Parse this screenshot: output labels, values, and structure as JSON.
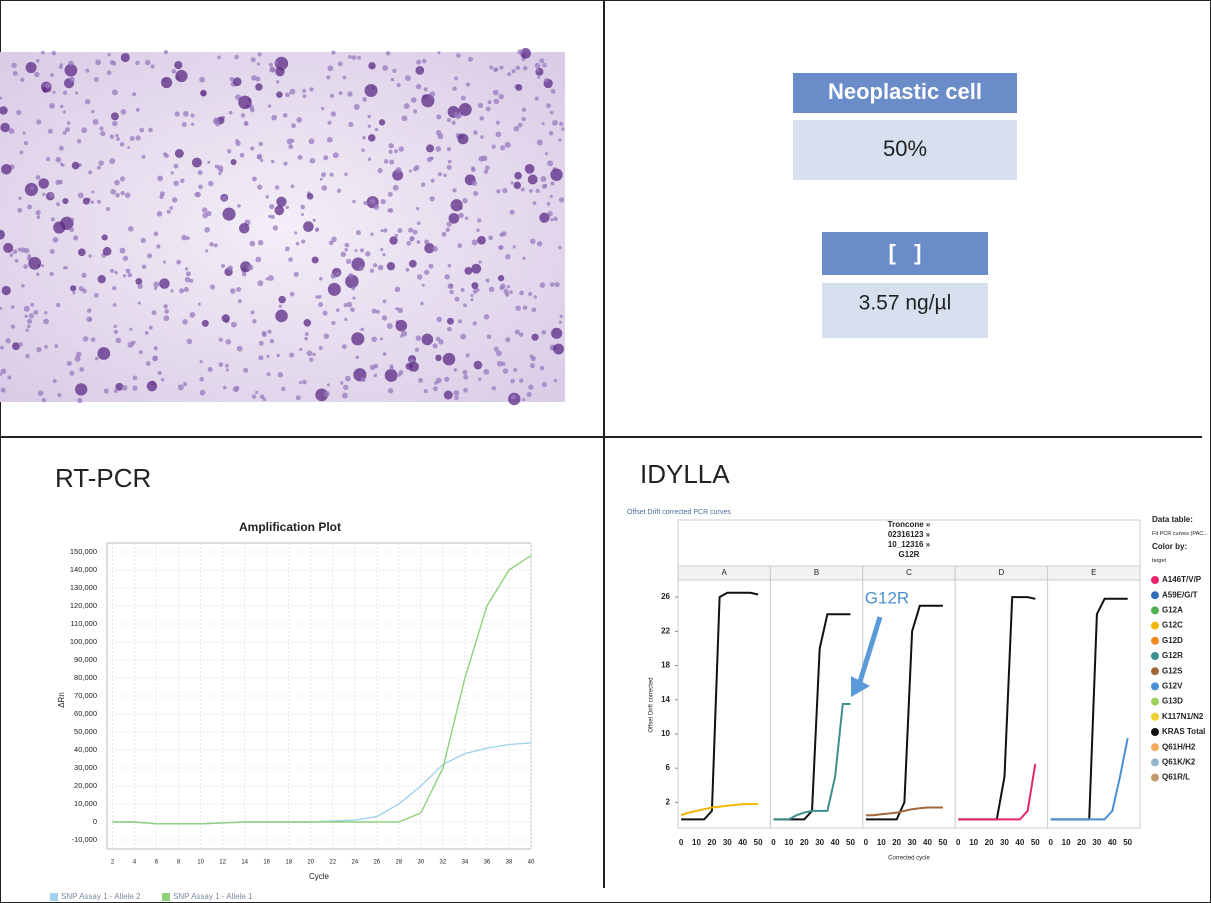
{
  "labels": {
    "cell_label": "Neoplastic cell",
    "cell_value": "50%",
    "conc_label": "[   ]",
    "conc_value": "3.57 ng/µl",
    "rtpcr": "RT-PCR",
    "idylla": "IDYLLA"
  },
  "chart_data": [
    {
      "type": "line",
      "title": "Amplification Plot",
      "x_label": "Cycle",
      "y_label": "ΔRn",
      "x": [
        2,
        4,
        6,
        8,
        10,
        12,
        14,
        16,
        18,
        20,
        22,
        24,
        26,
        28,
        30,
        32,
        34,
        36,
        38,
        40
      ],
      "series": [
        {
          "name": "SNP Assay 1 - Allele 2",
          "color": "#9fd3ec",
          "values": [
            0,
            0,
            -1000,
            -1000,
            -1000,
            -500,
            0,
            0,
            0,
            0,
            500,
            1000,
            3000,
            10000,
            20000,
            32000,
            38000,
            41000,
            43000,
            44000
          ]
        },
        {
          "name": "SNP Assay 1 - Allele 1",
          "color": "#8fd07a",
          "values": [
            0,
            0,
            -1000,
            -1000,
            -1000,
            -500,
            0,
            0,
            0,
            0,
            0,
            0,
            0,
            0,
            5000,
            30000,
            80000,
            120000,
            140000,
            148000
          ]
        }
      ],
      "xlim": [
        1.5,
        40
      ],
      "ylim": [
        -15000,
        155000
      ],
      "xticks": [
        2,
        4,
        6,
        8,
        10,
        12,
        14,
        16,
        18,
        20,
        22,
        24,
        26,
        28,
        30,
        32,
        34,
        36,
        38,
        40
      ],
      "yticks": [
        {
          "value": 150000,
          "label": "150,000"
        },
        {
          "value": 140000,
          "label": "140,000"
        },
        {
          "value": 130000,
          "label": "130,000"
        },
        {
          "value": 120000,
          "label": "120,000"
        },
        {
          "value": 110000,
          "label": "110,000"
        },
        {
          "value": 100000,
          "label": "100,000"
        },
        {
          "value": 90000,
          "label": "90,000"
        },
        {
          "value": 80000,
          "label": "80,000"
        },
        {
          "value": 70000,
          "label": "70,000"
        },
        {
          "value": 60000,
          "label": "60,000"
        },
        {
          "value": 50000,
          "label": "50,000"
        },
        {
          "value": 40000,
          "label": "40,000"
        },
        {
          "value": 30000,
          "label": "30,000"
        },
        {
          "value": 20000,
          "label": "20,000"
        },
        {
          "value": 10000,
          "label": "10,000"
        },
        0,
        {
          "value": -10000,
          "label": "-10,000"
        }
      ],
      "grid": true,
      "legend": "bottom"
    },
    {
      "type": "facet-line",
      "header": "Offset Drift corrected PCR curves",
      "title_lines": [
        "Troncone »",
        "02316123 »",
        "10_12316 »",
        "G12R"
      ],
      "x_label": "Corrected cycle",
      "y_label": "Offset Drift corrected",
      "legend_header": [
        "Data table:",
        "Fit PCR curves (PAC...",
        "Color by:",
        "target"
      ],
      "legend": [
        {
          "name": "A146T/V/P",
          "color": "#e8246f"
        },
        {
          "name": "A59E/G/T",
          "color": "#2f6fb8"
        },
        {
          "name": "G12A",
          "color": "#4caf50"
        },
        {
          "name": "G12C",
          "color": "#f2b705"
        },
        {
          "name": "G12D",
          "color": "#f08a24"
        },
        {
          "name": "G12R",
          "color": "#3f8f8f"
        },
        {
          "name": "G12S",
          "color": "#a0673a"
        },
        {
          "name": "G12V",
          "color": "#4a8fd4"
        },
        {
          "name": "G13D",
          "color": "#9fcf5f"
        },
        {
          "name": "K117N1/N2",
          "color": "#f0d030"
        },
        {
          "name": "KRAS Total",
          "color": "#111111"
        },
        {
          "name": "Q61H/H2",
          "color": "#f3a85a"
        },
        {
          "name": "Q61K/K2",
          "color": "#8fb9c9"
        },
        {
          "name": "Q61R/L",
          "color": "#c49a6c"
        }
      ],
      "x": [
        0,
        5,
        10,
        15,
        20,
        25,
        30,
        35,
        40,
        45,
        50
      ],
      "facets": [
        {
          "name": "A",
          "series": [
            {
              "name": "KRAS Total",
              "values": [
                0,
                0,
                0,
                0,
                1,
                26,
                26.5,
                26.5,
                26.5,
                26.5,
                26.3
              ]
            },
            {
              "name": "G12C",
              "values": [
                0.5,
                0.8,
                1,
                1.2,
                1.4,
                1.5,
                1.6,
                1.7,
                1.8,
                1.8,
                1.8
              ]
            }
          ]
        },
        {
          "name": "B",
          "series": [
            {
              "name": "KRAS Total",
              "values": [
                0,
                0,
                0,
                0,
                0,
                1,
                20,
                24,
                24,
                24,
                24
              ]
            },
            {
              "name": "G12R",
              "values": [
                0,
                0,
                0,
                0.5,
                0.8,
                1,
                1,
                1,
                5,
                13.5,
                13.5
              ]
            }
          ]
        },
        {
          "name": "C",
          "series": [
            {
              "name": "KRAS Total",
              "values": [
                0,
                0,
                0,
                0,
                0,
                2,
                22,
                25,
                25,
                25,
                25
              ]
            },
            {
              "name": "G12S",
              "values": [
                0.5,
                0.5,
                0.6,
                0.7,
                0.8,
                1,
                1.2,
                1.3,
                1.4,
                1.4,
                1.4
              ]
            }
          ]
        },
        {
          "name": "D",
          "series": [
            {
              "name": "KRAS Total",
              "values": [
                0,
                0,
                0,
                0,
                0,
                0,
                5,
                26,
                26,
                26,
                25.8
              ]
            },
            {
              "name": "A146T/V/P",
              "values": [
                0,
                0,
                0,
                0,
                0,
                0,
                0,
                0,
                0,
                1,
                6.5
              ]
            }
          ]
        },
        {
          "name": "E",
          "series": [
            {
              "name": "KRAS Total",
              "values": [
                0,
                0,
                0,
                0,
                0,
                0,
                24,
                25.8,
                25.8,
                25.8,
                25.8
              ]
            },
            {
              "name": "G12V",
              "values": [
                0,
                0,
                0,
                0,
                0,
                0,
                0,
                0,
                1,
                5,
                9.5
              ]
            }
          ]
        }
      ],
      "xlim": [
        -2,
        58
      ],
      "ylim": [
        -1,
        28
      ],
      "xticks": [
        0,
        10,
        20,
        30,
        40,
        50
      ],
      "yticks": [
        2,
        6,
        10,
        14,
        18,
        22,
        26
      ],
      "annotation": "G12R"
    }
  ]
}
